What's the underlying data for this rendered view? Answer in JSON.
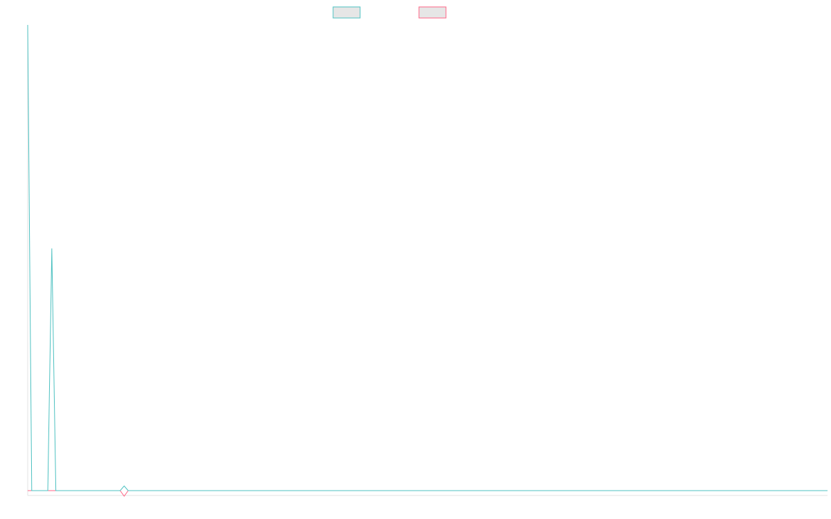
{
  "chart_data": {
    "type": "line",
    "title": "",
    "xlabel": "",
    "ylabel": "",
    "grid": false,
    "legend": "top-center",
    "x_count": 200,
    "ylim": [
      -1,
      100
    ],
    "series": [
      {
        "name": "",
        "color": "#4bc0c0",
        "fill": "#e6e6e6",
        "points": [
          [
            0,
            100
          ],
          [
            1,
            0
          ],
          [
            2,
            0
          ],
          [
            3,
            0
          ],
          [
            4,
            0
          ],
          [
            5,
            0
          ],
          [
            6,
            52
          ],
          [
            7,
            0
          ],
          [
            8,
            0
          ],
          [
            9,
            0
          ],
          [
            10,
            0
          ],
          [
            11,
            0
          ],
          [
            12,
            0
          ],
          [
            13,
            0
          ],
          [
            14,
            0
          ],
          [
            15,
            0
          ],
          [
            16,
            0
          ],
          [
            17,
            0
          ],
          [
            18,
            0
          ],
          [
            19,
            0
          ],
          [
            20,
            0
          ],
          [
            21,
            0
          ],
          [
            22,
            0
          ],
          [
            23,
            0
          ],
          [
            24,
            1
          ],
          [
            25,
            0
          ],
          [
            26,
            0
          ],
          [
            27,
            0
          ],
          [
            28,
            0
          ],
          [
            199,
            0
          ]
        ]
      },
      {
        "name": "",
        "color": "#ff6384",
        "fill": "#e6e6e6",
        "points": [
          [
            0,
            0
          ],
          [
            1,
            0
          ],
          [
            5,
            0
          ],
          [
            6,
            0
          ],
          [
            7,
            0
          ],
          [
            23,
            0
          ],
          [
            24,
            -1
          ],
          [
            25,
            0
          ],
          [
            199,
            0
          ]
        ]
      }
    ]
  }
}
